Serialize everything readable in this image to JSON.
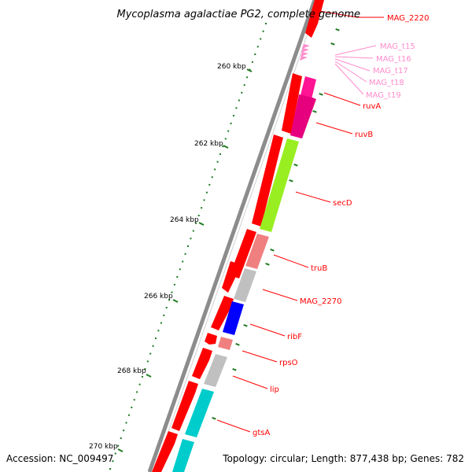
{
  "title": "Mycoplasma agalactiae PG2, complete genome",
  "accession": "Accession: NC_009497",
  "summary": "Topology: circular; Length: 877,438 bp; Genes: 782",
  "colors": {
    "backbone": "#8c8c8c",
    "tick": "#207a20",
    "cds_outer": "#ff0000",
    "label_line": "#ff0000",
    "trna": "#ff8ccc",
    "trna_label": "#ff8ccc"
  },
  "kbp_ticks": [
    "260 kbp",
    "262 kbp",
    "264 kbp",
    "266 kbp",
    "268 kbp",
    "270 kbp"
  ],
  "genes": [
    {
      "name": "MAG_2220",
      "color": "#ff0000"
    },
    {
      "name": "MAG_t15",
      "color": "#ff8ccc"
    },
    {
      "name": "MAG_t16",
      "color": "#ff8ccc"
    },
    {
      "name": "MAG_t17",
      "color": "#ff8ccc"
    },
    {
      "name": "MAG_t18",
      "color": "#ff8ccc"
    },
    {
      "name": "MAG_t19",
      "color": "#ff8ccc"
    },
    {
      "name": "ruvA",
      "color": "#ff1493"
    },
    {
      "name": "ruvB",
      "color": "#ff1493"
    },
    {
      "name": "secD",
      "color": "#99ee22"
    },
    {
      "name": "truB",
      "color": "#f08080"
    },
    {
      "name": "MAG_2270",
      "color": "#c0c0c0"
    },
    {
      "name": "ribF",
      "color": "#0000ff"
    },
    {
      "name": "rpsO",
      "color": "#f08080"
    },
    {
      "name": "lip",
      "color": "#c0c0c0"
    },
    {
      "name": "gtsA",
      "color": "#00cccc"
    }
  ]
}
